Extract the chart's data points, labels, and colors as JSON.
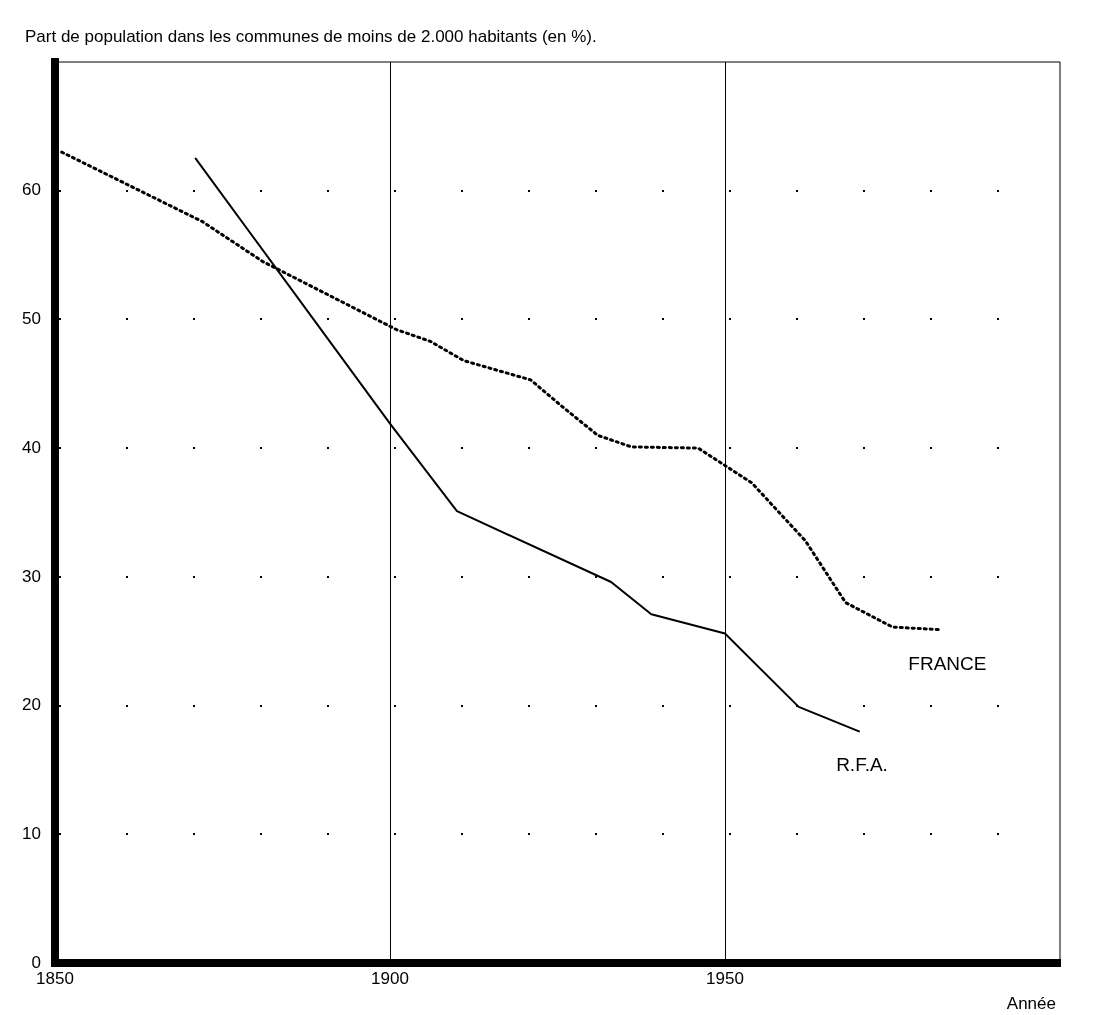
{
  "chart_data": {
    "type": "line",
    "title": "Part de population dans les communes de moins de 2.000 habitants (en %).",
    "xlabel": "Année",
    "xlim": [
      1850,
      2000
    ],
    "xticks": [
      1850,
      1900,
      1950
    ],
    "ylim": [
      0,
      70
    ],
    "yticks": [
      0,
      10,
      20,
      30,
      40,
      50,
      60
    ],
    "grid": true,
    "legend": false,
    "marker": "none",
    "series": [
      {
        "name": "FRANCE",
        "color": "#000000",
        "line_style": "dotted",
        "x": [
          1851,
          1872,
          1881,
          1901,
          1906,
          1911,
          1921,
          1926,
          1931,
          1936,
          1946,
          1954,
          1962,
          1968,
          1975,
          1982
        ],
        "values": [
          63,
          57.6,
          54.5,
          49.2,
          48.3,
          46.8,
          45.3,
          43.1,
          41,
          40.1,
          40,
          37.3,
          32.8,
          28,
          26.1,
          25.9
        ]
      },
      {
        "name": "R.F.A.",
        "color": "#000000",
        "line_style": "solid",
        "x": [
          1871,
          1900,
          1910,
          1933,
          1939,
          1950,
          1961,
          1970
        ],
        "values": [
          62.5,
          41.9,
          35.1,
          29.6,
          27.1,
          25.6,
          19.9,
          18
        ]
      }
    ]
  }
}
